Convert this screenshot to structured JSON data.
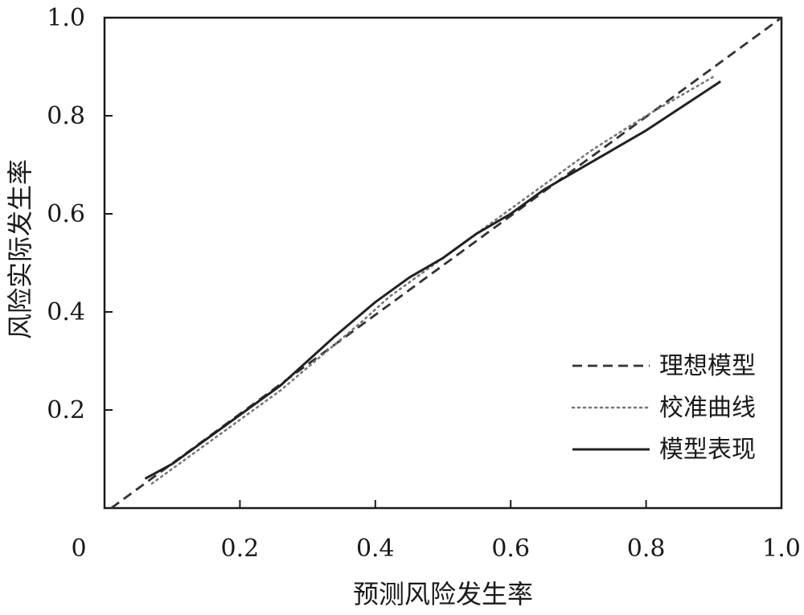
{
  "chart_data": {
    "type": "line",
    "xlabel": "预测风险发生率",
    "ylabel": "风险实际发生率",
    "xlim": [
      0,
      1.0
    ],
    "ylim": [
      0,
      1.0
    ],
    "origin_label": "0",
    "xticks": [
      {
        "value": 0.2,
        "label": "0.2"
      },
      {
        "value": 0.4,
        "label": "0.4"
      },
      {
        "value": 0.6,
        "label": "0.6"
      },
      {
        "value": 0.8,
        "label": "0.8"
      },
      {
        "value": 1.0,
        "label": "1.0"
      }
    ],
    "yticks": [
      {
        "value": 0.2,
        "label": "0.2"
      },
      {
        "value": 0.4,
        "label": "0.4"
      },
      {
        "value": 0.6,
        "label": "0.6"
      },
      {
        "value": 0.8,
        "label": "0.8"
      },
      {
        "value": 1.0,
        "label": "1.0"
      }
    ],
    "grid": false,
    "legend_position": "bottom-right",
    "series": [
      {
        "name": "理想模型",
        "style": "dashed",
        "color": "#333333",
        "x": [
          0.01,
          1.0
        ],
        "y": [
          0.0,
          1.0
        ]
      },
      {
        "name": "校准曲线",
        "style": "dotted",
        "color": "#777777",
        "x": [
          0.07,
          0.1,
          0.15,
          0.2,
          0.26,
          0.32,
          0.38,
          0.42,
          0.47,
          0.52,
          0.57,
          0.62,
          0.67,
          0.72,
          0.8,
          0.9
        ],
        "y": [
          0.05,
          0.08,
          0.13,
          0.18,
          0.24,
          0.31,
          0.38,
          0.43,
          0.48,
          0.53,
          0.58,
          0.63,
          0.68,
          0.73,
          0.8,
          0.88
        ]
      },
      {
        "name": "模型表现",
        "style": "solid",
        "color": "#222222",
        "x": [
          0.06,
          0.1,
          0.15,
          0.2,
          0.26,
          0.3,
          0.34,
          0.4,
          0.45,
          0.5,
          0.55,
          0.6,
          0.65,
          0.7,
          0.8,
          0.91
        ],
        "y": [
          0.06,
          0.09,
          0.14,
          0.19,
          0.25,
          0.3,
          0.35,
          0.42,
          0.47,
          0.51,
          0.56,
          0.6,
          0.65,
          0.69,
          0.77,
          0.87
        ]
      }
    ]
  }
}
